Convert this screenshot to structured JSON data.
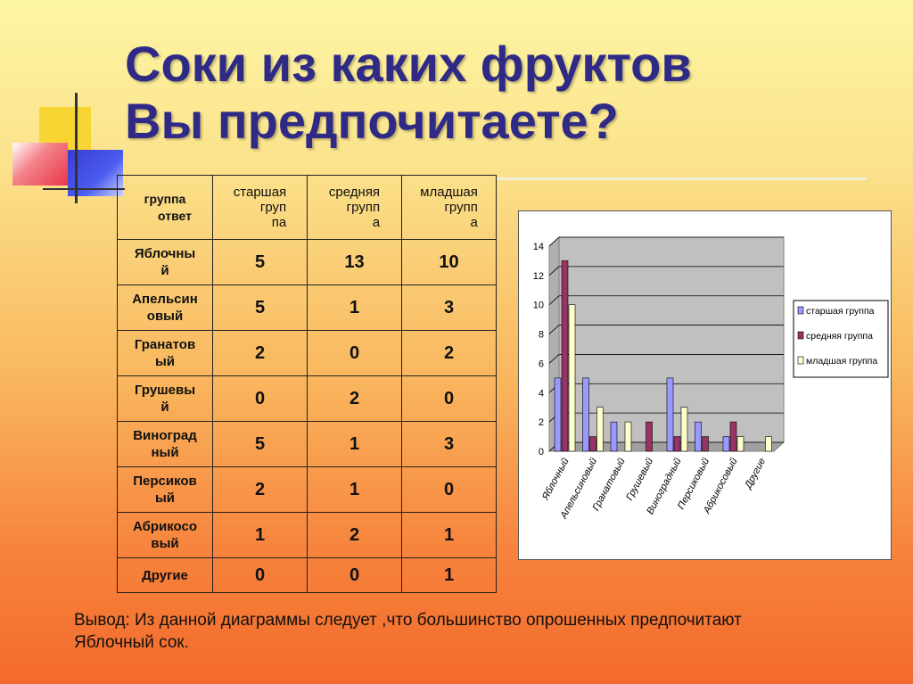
{
  "title": [
    "Соки из каких фруктов",
    "Вы предпочитаете?"
  ],
  "table": {
    "header_corner": [
      "группа",
      "ответ"
    ],
    "columns": [
      [
        "старшая",
        "груп",
        "па"
      ],
      [
        "средняя",
        "групп",
        "а"
      ],
      [
        "младшая",
        "групп",
        "а"
      ]
    ],
    "rows": [
      {
        "label": [
          "Яблочны",
          "й"
        ],
        "values": [
          "5",
          "13",
          "10"
        ]
      },
      {
        "label": [
          "Апельсин",
          "овый"
        ],
        "values": [
          "5",
          "1",
          "3"
        ]
      },
      {
        "label": [
          "Гранатов",
          "ый"
        ],
        "values": [
          "2",
          "0",
          "2"
        ]
      },
      {
        "label": [
          "Грушевы",
          "й"
        ],
        "values": [
          "0",
          "2",
          "0"
        ]
      },
      {
        "label": [
          "Виноград",
          "ный"
        ],
        "values": [
          "5",
          "1",
          "3"
        ]
      },
      {
        "label": [
          "Персиков",
          "ый"
        ],
        "values": [
          "2",
          "1",
          "0"
        ]
      },
      {
        "label": [
          "Абрикосо",
          "вый"
        ],
        "values": [
          "1",
          "2",
          "1"
        ]
      },
      {
        "label": [
          "Другие"
        ],
        "values": [
          "0",
          "0",
          "1"
        ]
      }
    ]
  },
  "chart_data": {
    "type": "bar",
    "categories": [
      "Яблочный",
      "Апельсиновый",
      "Гранатовый",
      "Грушевый",
      "Виноградный",
      "Персиковый",
      "Абрикосовый",
      "Другие"
    ],
    "series": [
      {
        "name": "старшая группа",
        "values": [
          5,
          5,
          2,
          0,
          5,
          2,
          1,
          0
        ],
        "color": "#9999ff"
      },
      {
        "name": "средняя группа",
        "values": [
          13,
          1,
          0,
          2,
          1,
          1,
          2,
          0
        ],
        "color": "#993366"
      },
      {
        "name": "младшая группа",
        "values": [
          10,
          3,
          2,
          0,
          3,
          0,
          1,
          1
        ],
        "color": "#ffffcc"
      }
    ],
    "yticks": [
      "0",
      "2",
      "4",
      "6",
      "8",
      "10",
      "12",
      "14"
    ],
    "ylim": [
      0,
      14
    ],
    "grid": true,
    "plot_background": "#c0c0c0",
    "legend_position": "right"
  },
  "conclusion": [
    "Вывод: Из данной диаграммы следует ,что большинство опрошенных предпочитают",
    "Яблочный сок."
  ]
}
